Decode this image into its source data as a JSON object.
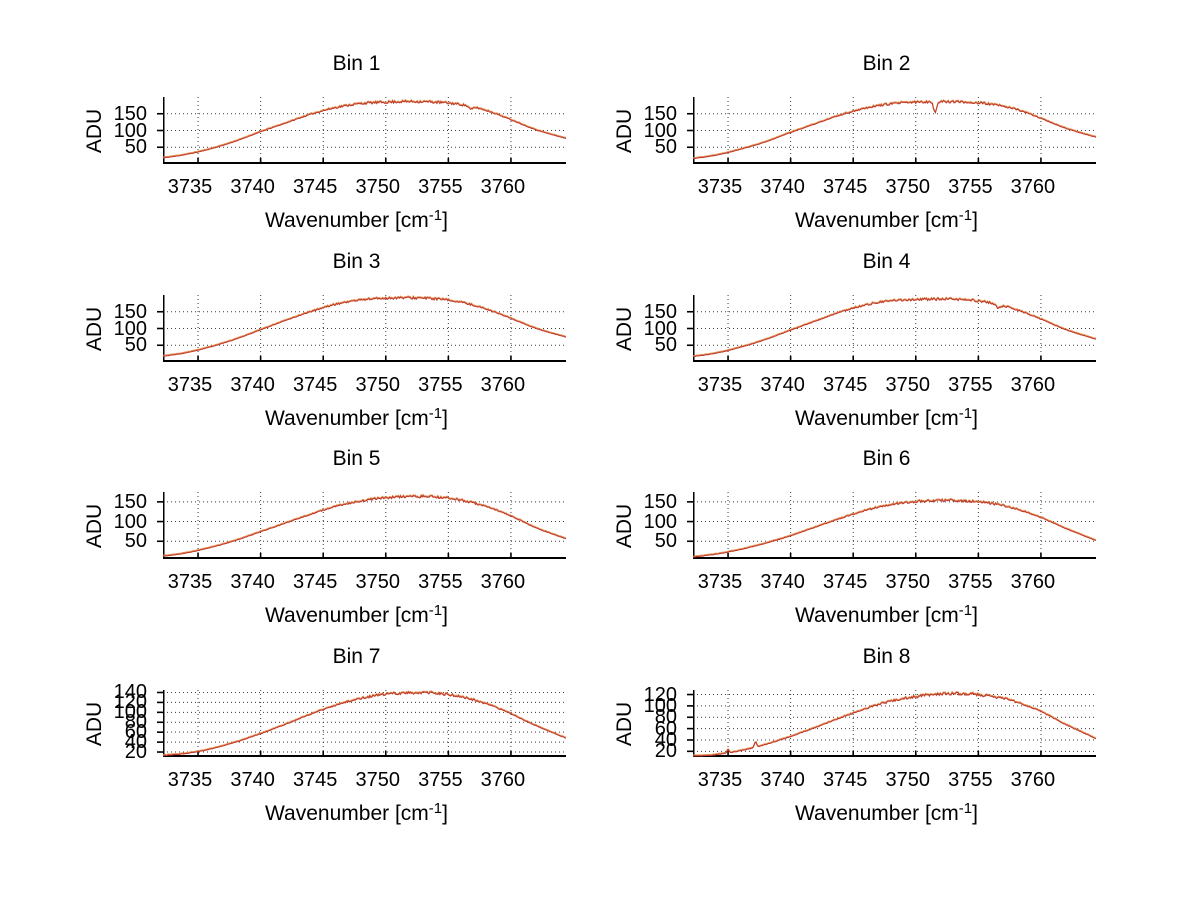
{
  "figure": {
    "background": "#ffffff",
    "line_color": "#c13b2a",
    "line_fringe_color": "#e08a45",
    "grid_color": "#3a3a3a",
    "axis_color": "#000000",
    "text_color": "#000000",
    "ylabel": "ADU",
    "xlabel_prefix": "Wavenumber [cm",
    "xlabel_sup": "-1",
    "xlabel_suffix": "]",
    "grid": "on",
    "legend": "none"
  },
  "chart_data": [
    {
      "type": "line",
      "title": "Bin 1",
      "xlabel": "Wavenumber [cm⁻¹]",
      "ylabel": "ADU",
      "xlim": [
        3732.2,
        3764.4
      ],
      "ylim": [
        0,
        200
      ],
      "xticks": [
        3735,
        3740,
        3745,
        3750,
        3755,
        3760
      ],
      "yticks": [
        50,
        100,
        150
      ],
      "x": [
        3732.2,
        3734,
        3736,
        3738,
        3740,
        3742,
        3744,
        3746,
        3748,
        3750,
        3752,
        3754,
        3756,
        3758,
        3760,
        3762,
        3764.4
      ],
      "y": [
        18,
        28,
        45,
        68,
        96,
        122,
        148,
        168,
        180,
        184,
        186,
        184,
        177,
        160,
        132,
        102,
        76
      ],
      "noise_amp": 3.2,
      "seed": 11,
      "features": [
        {
          "kind": "dip",
          "x": 3756.8,
          "amp": 9,
          "sigma": 0.15
        }
      ]
    },
    {
      "type": "line",
      "title": "Bin 2",
      "xlabel": "Wavenumber [cm⁻¹]",
      "ylabel": "ADU",
      "xlim": [
        3732.2,
        3764.4
      ],
      "ylim": [
        0,
        200
      ],
      "xticks": [
        3735,
        3740,
        3745,
        3750,
        3755,
        3760
      ],
      "yticks": [
        50,
        100,
        150
      ],
      "x": [
        3732.2,
        3734,
        3736,
        3738,
        3740,
        3742,
        3744,
        3746,
        3748,
        3750,
        3752,
        3754,
        3756,
        3758,
        3760,
        3762,
        3764.4
      ],
      "y": [
        16,
        26,
        44,
        66,
        94,
        120,
        146,
        167,
        179,
        184,
        186,
        184,
        178,
        163,
        136,
        106,
        80
      ],
      "noise_amp": 3.2,
      "seed": 22,
      "features": [
        {
          "kind": "dip",
          "x": 3751.55,
          "amp": 34,
          "sigma": 0.12
        }
      ]
    },
    {
      "type": "line",
      "title": "Bin 3",
      "xlabel": "Wavenumber [cm⁻¹]",
      "ylabel": "ADU",
      "xlim": [
        3732.2,
        3764.4
      ],
      "ylim": [
        0,
        200
      ],
      "xticks": [
        3735,
        3740,
        3745,
        3750,
        3755,
        3760
      ],
      "yticks": [
        50,
        100,
        150
      ],
      "x": [
        3732.2,
        3734,
        3736,
        3738,
        3740,
        3742,
        3744,
        3746,
        3748,
        3750,
        3752,
        3754,
        3756,
        3758,
        3760,
        3762,
        3764.4
      ],
      "y": [
        17,
        27,
        45,
        68,
        96,
        124,
        150,
        172,
        185,
        190,
        191,
        188,
        178,
        158,
        130,
        100,
        74
      ],
      "noise_amp": 3.0,
      "seed": 33,
      "features": []
    },
    {
      "type": "line",
      "title": "Bin 4",
      "xlabel": "Wavenumber [cm⁻¹]",
      "ylabel": "ADU",
      "xlim": [
        3732.2,
        3764.4
      ],
      "ylim": [
        0,
        200
      ],
      "xticks": [
        3735,
        3740,
        3745,
        3750,
        3755,
        3760
      ],
      "yticks": [
        50,
        100,
        150
      ],
      "x": [
        3732.2,
        3734,
        3736,
        3738,
        3740,
        3742,
        3744,
        3746,
        3748,
        3750,
        3752,
        3754,
        3756,
        3758,
        3760,
        3762,
        3764.4
      ],
      "y": [
        16,
        26,
        44,
        67,
        95,
        122,
        149,
        170,
        182,
        186,
        187,
        185,
        176,
        156,
        128,
        96,
        68
      ],
      "noise_amp": 3.0,
      "seed": 44,
      "features": [
        {
          "kind": "dip",
          "x": 3756.6,
          "amp": 10,
          "sigma": 0.2
        }
      ]
    },
    {
      "type": "line",
      "title": "Bin 5",
      "xlabel": "Wavenumber [cm⁻¹]",
      "ylabel": "ADU",
      "xlim": [
        3732.2,
        3764.4
      ],
      "ylim": [
        5,
        175
      ],
      "xticks": [
        3735,
        3740,
        3745,
        3750,
        3755,
        3760
      ],
      "yticks": [
        50,
        100,
        150
      ],
      "x": [
        3732.2,
        3734,
        3736,
        3738,
        3740,
        3742,
        3744,
        3746,
        3748,
        3750,
        3752,
        3754,
        3756,
        3758,
        3760,
        3762,
        3764.4
      ],
      "y": [
        12,
        20,
        34,
        52,
        74,
        96,
        118,
        138,
        152,
        160,
        163,
        162,
        154,
        138,
        114,
        84,
        56
      ],
      "noise_amp": 2.6,
      "seed": 55,
      "features": []
    },
    {
      "type": "line",
      "title": "Bin 6",
      "xlabel": "Wavenumber [cm⁻¹]",
      "ylabel": "ADU",
      "xlim": [
        3732.2,
        3764.4
      ],
      "ylim": [
        5,
        175
      ],
      "xticks": [
        3735,
        3740,
        3745,
        3750,
        3755,
        3760
      ],
      "yticks": [
        50,
        100,
        150
      ],
      "x": [
        3732.2,
        3734,
        3736,
        3738,
        3740,
        3742,
        3744,
        3746,
        3748,
        3750,
        3752,
        3754,
        3756,
        3758,
        3760,
        3762,
        3764.4
      ],
      "y": [
        10,
        17,
        29,
        45,
        64,
        86,
        108,
        128,
        143,
        150,
        153,
        152,
        146,
        132,
        110,
        82,
        52
      ],
      "noise_amp": 2.6,
      "seed": 66,
      "features": []
    },
    {
      "type": "line",
      "title": "Bin 7",
      "xlabel": "Wavenumber [cm⁻¹]",
      "ylabel": "ADU",
      "xlim": [
        3732.2,
        3764.4
      ],
      "ylim": [
        10,
        145
      ],
      "xticks": [
        3735,
        3740,
        3745,
        3750,
        3755,
        3760
      ],
      "yticks": [
        20,
        40,
        60,
        80,
        100,
        120,
        140
      ],
      "x": [
        3732.2,
        3734,
        3736,
        3738,
        3740,
        3742,
        3744,
        3746,
        3748,
        3750,
        3752,
        3754,
        3756,
        3758,
        3760,
        3762,
        3764.4
      ],
      "y": [
        13,
        17,
        26,
        40,
        57,
        76,
        96,
        114,
        128,
        136,
        139,
        138,
        131,
        117,
        97,
        73,
        48
      ],
      "noise_amp": 2.2,
      "seed": 77,
      "features": []
    },
    {
      "type": "line",
      "title": "Bin 8",
      "xlabel": "Wavenumber [cm⁻¹]",
      "ylabel": "ADU",
      "xlim": [
        3732.2,
        3764.4
      ],
      "ylim": [
        10,
        128
      ],
      "xticks": [
        3735,
        3740,
        3745,
        3750,
        3755,
        3760
      ],
      "yticks": [
        20,
        40,
        60,
        80,
        100,
        120
      ],
      "x": [
        3732.2,
        3734,
        3736,
        3738,
        3740,
        3742,
        3744,
        3746,
        3748,
        3750,
        3752,
        3754,
        3756,
        3758,
        3760,
        3762,
        3764.4
      ],
      "y": [
        11,
        14,
        21,
        32,
        46,
        62,
        79,
        95,
        108,
        116,
        121,
        121,
        117,
        107,
        90,
        67,
        42
      ],
      "noise_amp": 2.2,
      "seed": 88,
      "features": [
        {
          "kind": "spike",
          "x": 3735.0,
          "amp": 6,
          "sigma": 0.08
        },
        {
          "kind": "spike",
          "x": 3737.2,
          "amp": 9,
          "sigma": 0.09
        }
      ]
    }
  ]
}
